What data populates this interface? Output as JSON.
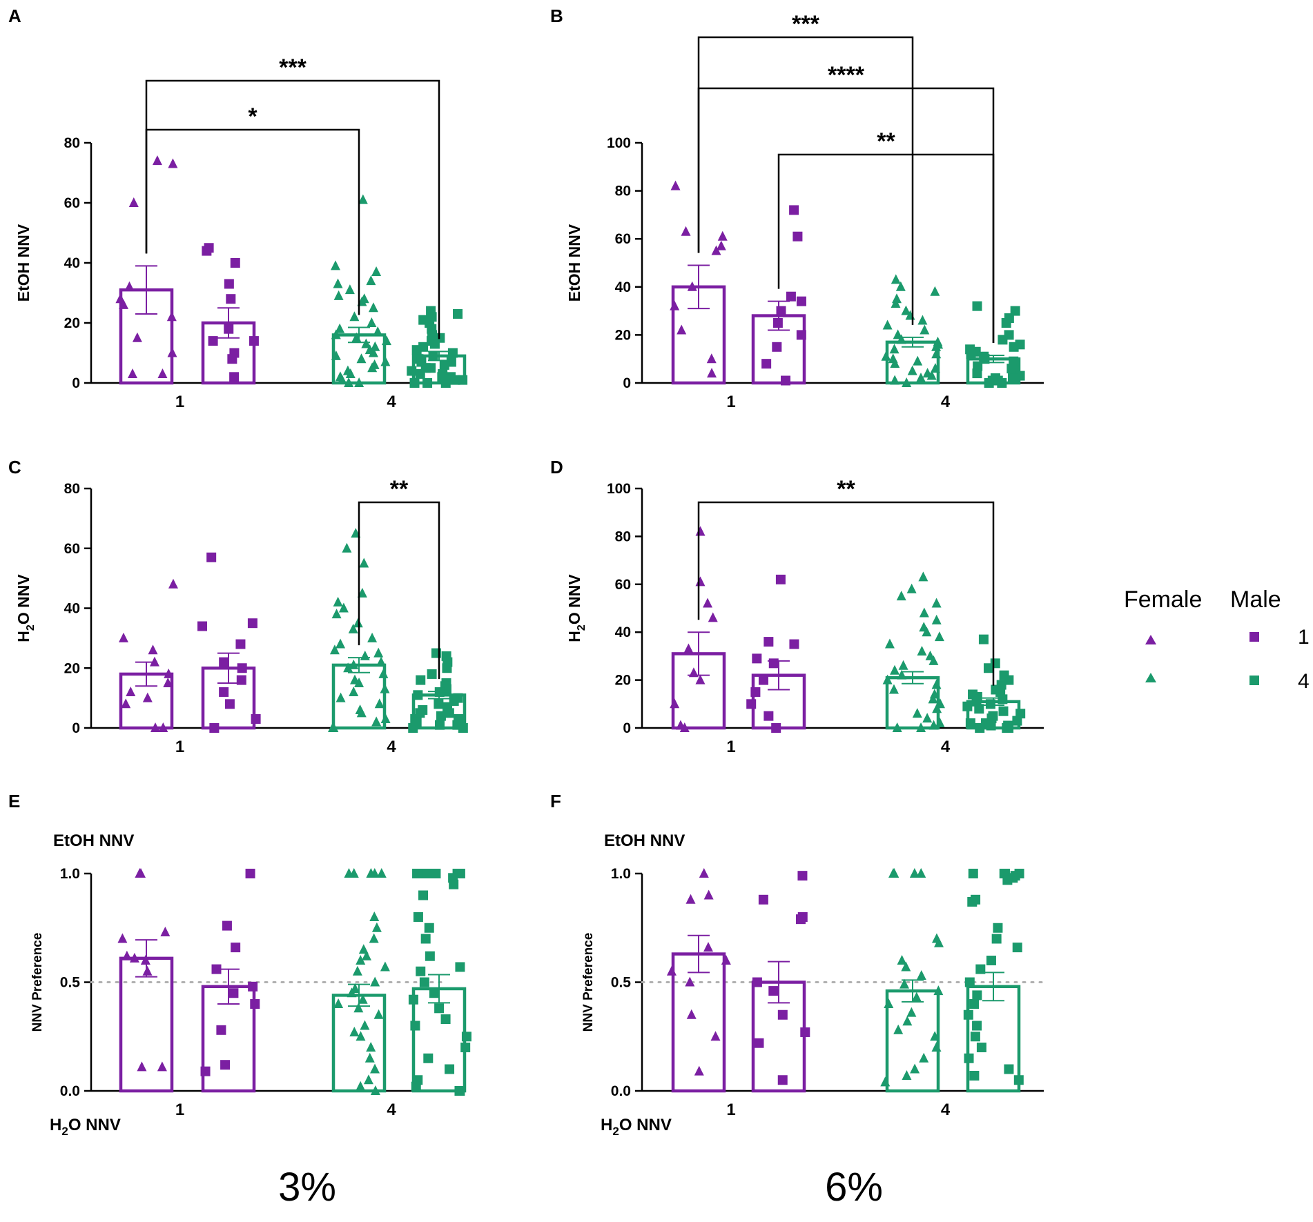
{
  "colors": {
    "purple": "#7b1fa2",
    "green": "#1b9a6c",
    "ref_line": "#b0b0b0"
  },
  "legend": {
    "female_label": "Female",
    "male_label": "Male",
    "row1_label": "1",
    "row2_label": "4"
  },
  "concentrations": {
    "left": "3%",
    "right": "6%"
  },
  "chart_data": [
    {
      "id": "A",
      "type": "bar",
      "ylabel": "EtOH NNV",
      "ylim": [
        0,
        80
      ],
      "yticks": [
        0,
        20,
        40,
        60,
        80
      ],
      "ytick_labels": [
        "0",
        "20",
        "40",
        "60",
        "80"
      ],
      "categories": [
        "1",
        "4"
      ],
      "series": [
        {
          "group": "1",
          "sex": "Female",
          "mean": 31,
          "sem": 8,
          "points": [
            74,
            73,
            60,
            32,
            28,
            26,
            22,
            15,
            10,
            3,
            3
          ]
        },
        {
          "group": "1",
          "sex": "Male",
          "mean": 20,
          "sem": 5,
          "points": [
            45,
            44,
            40,
            33,
            28,
            18,
            14,
            14,
            10,
            8,
            2
          ]
        },
        {
          "group": "4",
          "sex": "Female",
          "mean": 16,
          "sem": 2.5,
          "points": [
            61,
            39,
            37,
            34,
            33,
            31,
            29,
            28,
            27,
            25,
            22,
            20,
            18,
            17,
            16,
            15,
            14,
            13,
            12,
            11,
            10,
            9,
            8,
            7,
            6,
            5,
            4,
            3,
            2,
            1,
            0,
            0
          ]
        },
        {
          "group": "4",
          "sex": "Male",
          "mean": 9,
          "sem": 1.5,
          "points": [
            24,
            23,
            22,
            21,
            20,
            18,
            16,
            15,
            14,
            13,
            12,
            11,
            10,
            9,
            8,
            7,
            7,
            6,
            5,
            5,
            4,
            3,
            3,
            2,
            2,
            1,
            1,
            0,
            0,
            0
          ]
        }
      ],
      "significance": [
        {
          "from": 0,
          "to": 2,
          "label": "*"
        },
        {
          "from": 0,
          "to": 3,
          "label": "***"
        }
      ]
    },
    {
      "id": "B",
      "type": "bar",
      "ylabel": "EtOH NNV",
      "ylim": [
        0,
        100
      ],
      "yticks": [
        0,
        20,
        40,
        60,
        80,
        100
      ],
      "ytick_labels": [
        "0",
        "20",
        "40",
        "60",
        "80",
        "100"
      ],
      "categories": [
        "1",
        "4"
      ],
      "series": [
        {
          "group": "1",
          "sex": "Female",
          "mean": 40,
          "sem": 9,
          "points": [
            82,
            63,
            61,
            57,
            55,
            40,
            32,
            22,
            10,
            4
          ]
        },
        {
          "group": "1",
          "sex": "Male",
          "mean": 28,
          "sem": 6,
          "points": [
            72,
            61,
            36,
            34,
            30,
            25,
            20,
            15,
            8,
            1
          ]
        },
        {
          "group": "4",
          "sex": "Female",
          "mean": 17,
          "sem": 2,
          "points": [
            43,
            40,
            38,
            35,
            33,
            30,
            28,
            26,
            24,
            22,
            20,
            18,
            17,
            16,
            15,
            14,
            12,
            11,
            10,
            9,
            8,
            6,
            5,
            4,
            3,
            2,
            1,
            0
          ]
        },
        {
          "group": "4",
          "sex": "Male",
          "mean": 10,
          "sem": 1.5,
          "points": [
            32,
            30,
            27,
            25,
            20,
            18,
            16,
            15,
            14,
            13,
            12,
            11,
            10,
            9,
            8,
            7,
            6,
            5,
            4,
            3,
            2,
            2,
            1,
            1,
            0,
            0
          ]
        }
      ],
      "significance": [
        {
          "from": 0,
          "to": 3,
          "label": "****"
        },
        {
          "from": 0,
          "to": 2,
          "label": "***"
        },
        {
          "from": 1,
          "to": 3,
          "label": "**"
        }
      ]
    },
    {
      "id": "C",
      "type": "bar",
      "ylabel_main": "H",
      "ylabel_sub": "2",
      "ylabel_rest": "O NNV",
      "ylim": [
        0,
        80
      ],
      "yticks": [
        0,
        20,
        40,
        60,
        80
      ],
      "ytick_labels": [
        "0",
        "20",
        "40",
        "60",
        "80"
      ],
      "categories": [
        "1",
        "4"
      ],
      "series": [
        {
          "group": "1",
          "sex": "Female",
          "mean": 18,
          "sem": 4,
          "points": [
            48,
            30,
            26,
            22,
            18,
            15,
            12,
            10,
            8,
            0,
            0
          ]
        },
        {
          "group": "1",
          "sex": "Male",
          "mean": 20,
          "sem": 5,
          "points": [
            57,
            35,
            34,
            28,
            22,
            20,
            16,
            12,
            8,
            3,
            0
          ]
        },
        {
          "group": "4",
          "sex": "Female",
          "mean": 21,
          "sem": 2.5,
          "points": [
            65,
            60,
            55,
            45,
            42,
            40,
            38,
            35,
            33,
            30,
            28,
            26,
            25,
            24,
            22,
            21,
            20,
            18,
            16,
            15,
            13,
            12,
            10,
            8,
            6,
            5,
            3,
            2,
            0,
            0
          ]
        },
        {
          "group": "4",
          "sex": "Male",
          "mean": 11,
          "sem": 1.2,
          "points": [
            25,
            24,
            22,
            20,
            18,
            16,
            15,
            14,
            13,
            12,
            11,
            10,
            9,
            8,
            7,
            6,
            5,
            5,
            4,
            3,
            3,
            2,
            1,
            1,
            0,
            0
          ]
        }
      ],
      "significance": [
        {
          "from": 2,
          "to": 3,
          "label": "**"
        }
      ]
    },
    {
      "id": "D",
      "type": "bar",
      "ylabel_main": "H",
      "ylabel_sub": "2",
      "ylabel_rest": "O NNV",
      "ylim": [
        0,
        100
      ],
      "yticks": [
        0,
        20,
        40,
        60,
        80,
        100
      ],
      "ytick_labels": [
        "0",
        "20",
        "40",
        "60",
        "80",
        "100"
      ],
      "categories": [
        "1",
        "4"
      ],
      "series": [
        {
          "group": "1",
          "sex": "Female",
          "mean": 31,
          "sem": 9,
          "points": [
            82,
            61,
            52,
            46,
            33,
            23,
            20,
            10,
            1,
            0
          ]
        },
        {
          "group": "1",
          "sex": "Male",
          "mean": 22,
          "sem": 6,
          "points": [
            62,
            36,
            35,
            29,
            27,
            20,
            15,
            10,
            5,
            0
          ]
        },
        {
          "group": "4",
          "sex": "Female",
          "mean": 21,
          "sem": 2.5,
          "points": [
            63,
            58,
            55,
            52,
            48,
            45,
            42,
            40,
            38,
            35,
            32,
            30,
            28,
            26,
            24,
            22,
            20,
            18,
            16,
            14,
            12,
            10,
            8,
            6,
            4,
            2,
            1,
            0,
            0
          ]
        },
        {
          "group": "4",
          "sex": "Male",
          "mean": 11,
          "sem": 1.5,
          "points": [
            37,
            27,
            25,
            22,
            20,
            18,
            16,
            15,
            14,
            13,
            12,
            11,
            10,
            9,
            8,
            7,
            6,
            5,
            4,
            3,
            2,
            2,
            1,
            1,
            0,
            0,
            0
          ]
        }
      ],
      "significance": [
        {
          "from": 0,
          "to": 3,
          "label": "**"
        }
      ]
    },
    {
      "id": "E",
      "type": "bar",
      "ylabel": "NNV Preference",
      "ylim": [
        0,
        1
      ],
      "yticks": [
        0,
        0.5,
        1
      ],
      "ytick_labels": [
        "0.0",
        "0.5",
        "1.0"
      ],
      "categories": [
        "1",
        "4"
      ],
      "reference_line": 0.5,
      "top_label": "EtOH NNV",
      "bottom_main": "H",
      "bottom_sub": "2",
      "bottom_rest": "O NNV",
      "series": [
        {
          "group": "1",
          "sex": "Female",
          "mean": 0.61,
          "sem": 0.085,
          "points": [
            1.0,
            1.0,
            0.73,
            0.7,
            0.62,
            0.61,
            0.6,
            0.55,
            0.11,
            0.11
          ]
        },
        {
          "group": "1",
          "sex": "Male",
          "mean": 0.48,
          "sem": 0.08,
          "points": [
            1.0,
            0.76,
            0.66,
            0.56,
            0.48,
            0.45,
            0.4,
            0.28,
            0.12,
            0.09
          ]
        },
        {
          "group": "4",
          "sex": "Female",
          "mean": 0.44,
          "sem": 0.05,
          "points": [
            1.0,
            1.0,
            1.0,
            1.0,
            1.0,
            0.8,
            0.75,
            0.7,
            0.65,
            0.62,
            0.6,
            0.57,
            0.55,
            0.5,
            0.47,
            0.45,
            0.42,
            0.4,
            0.38,
            0.35,
            0.3,
            0.27,
            0.25,
            0.2,
            0.15,
            0.1,
            0.05,
            0.02,
            0.0
          ]
        },
        {
          "group": "4",
          "sex": "Male",
          "mean": 0.47,
          "sem": 0.065,
          "points": [
            1.0,
            1.0,
            1.0,
            1.0,
            1.0,
            0.98,
            0.95,
            0.9,
            0.8,
            0.75,
            0.7,
            0.62,
            0.57,
            0.55,
            0.5,
            0.45,
            0.42,
            0.38,
            0.33,
            0.3,
            0.25,
            0.2,
            0.15,
            0.1,
            0.05,
            0.02,
            0.0,
            0.0
          ]
        }
      ]
    },
    {
      "id": "F",
      "type": "bar",
      "ylabel": "NNV Preference",
      "ylim": [
        0,
        1
      ],
      "yticks": [
        0,
        0.5,
        1
      ],
      "ytick_labels": [
        "0.0",
        "0.5",
        "1.0"
      ],
      "categories": [
        "1",
        "4"
      ],
      "reference_line": 0.5,
      "top_label": "EtOH NNV",
      "bottom_main": "H",
      "bottom_sub": "2",
      "bottom_rest": "O NNV",
      "series": [
        {
          "group": "1",
          "sex": "Female",
          "mean": 0.63,
          "sem": 0.085,
          "points": [
            1.0,
            0.9,
            0.88,
            0.66,
            0.6,
            0.55,
            0.5,
            0.35,
            0.25,
            0.09
          ]
        },
        {
          "group": "1",
          "sex": "Male",
          "mean": 0.5,
          "sem": 0.095,
          "points": [
            0.99,
            0.88,
            0.8,
            0.79,
            0.5,
            0.46,
            0.35,
            0.27,
            0.22,
            0.05
          ]
        },
        {
          "group": "4",
          "sex": "Female",
          "mean": 0.46,
          "sem": 0.05,
          "points": [
            1.0,
            1.0,
            1.0,
            1.0,
            0.7,
            0.68,
            0.6,
            0.57,
            0.53,
            0.49,
            0.46,
            0.43,
            0.4,
            0.36,
            0.32,
            0.28,
            0.25,
            0.2,
            0.15,
            0.1,
            0.07,
            0.04
          ]
        },
        {
          "group": "4",
          "sex": "Male",
          "mean": 0.48,
          "sem": 0.065,
          "points": [
            1.0,
            1.0,
            1.0,
            1.0,
            0.99,
            0.98,
            0.97,
            0.88,
            0.87,
            0.75,
            0.7,
            0.66,
            0.6,
            0.56,
            0.5,
            0.44,
            0.4,
            0.35,
            0.3,
            0.25,
            0.2,
            0.15,
            0.1,
            0.07,
            0.05
          ]
        }
      ]
    }
  ]
}
